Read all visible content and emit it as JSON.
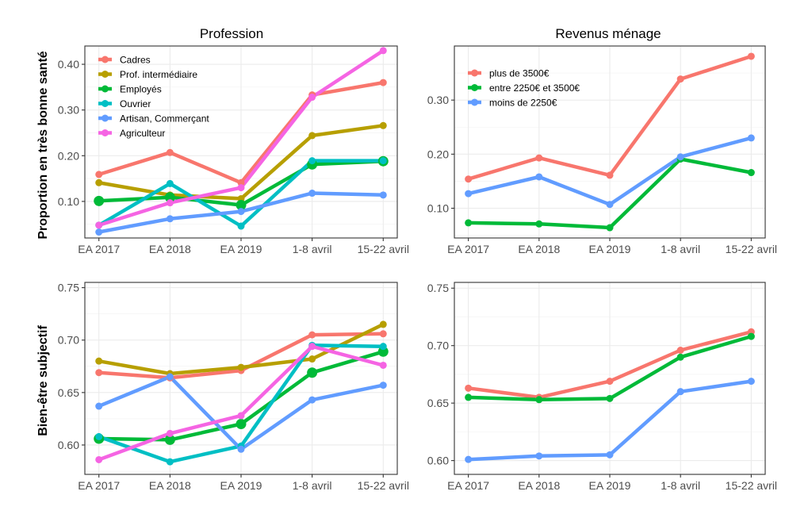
{
  "col_titles": [
    "Profession",
    "Revenus ménage"
  ],
  "row_labels": [
    "Proportion en très bonne santé",
    "Bien-être subjectif"
  ],
  "colors": {
    "Cadres": "#F8766D",
    "Prof. intermédiaire": "#B79F00",
    "Employés": "#00BA38",
    "Ouvrier": "#00BFC4",
    "Artisan, Commerçant": "#619CFF",
    "Agriculteur": "#F564E3",
    "plus de 3500€": "#F8766D",
    "entre 2250€ et 3500€": "#00BA38",
    "moins de 2250€": "#619CFF"
  },
  "chart_data": [
    {
      "type": "line",
      "title": "Profession",
      "ylabel": "Proportion en très bonne santé",
      "categories": [
        "EA 2017",
        "EA 2018",
        "EA 2019",
        "1-8 avril",
        "15-22 avril"
      ],
      "ylim": [
        0.02,
        0.44
      ],
      "yticks": [
        0.1,
        0.2,
        0.3,
        0.4
      ],
      "ytick_labels": [
        "0.10",
        "0.20",
        "0.30",
        "0.40"
      ],
      "grid": true,
      "legend": "top-left",
      "series": [
        {
          "name": "Cadres",
          "values": [
            0.159,
            0.207,
            0.141,
            0.333,
            0.36
          ]
        },
        {
          "name": "Prof. intermédiaire",
          "values": [
            0.141,
            0.114,
            0.106,
            0.244,
            0.266
          ]
        },
        {
          "name": "Employés",
          "values": [
            0.101,
            0.109,
            0.092,
            0.181,
            0.188
          ]
        },
        {
          "name": "Ouvrier",
          "values": [
            0.048,
            0.139,
            0.046,
            0.189,
            0.189
          ]
        },
        {
          "name": "Artisan, Commerçant",
          "values": [
            0.033,
            0.062,
            0.078,
            0.118,
            0.114
          ]
        },
        {
          "name": "Agriculteur",
          "values": [
            0.048,
            0.097,
            0.13,
            0.328,
            0.43
          ]
        }
      ]
    },
    {
      "type": "line",
      "title": "Revenus ménage",
      "ylabel": "",
      "categories": [
        "EA 2017",
        "EA 2018",
        "EA 2019",
        "1-8 avril",
        "15-22 avril"
      ],
      "ylim": [
        0.045,
        0.4
      ],
      "yticks": [
        0.1,
        0.2,
        0.3
      ],
      "ytick_labels": [
        "0.10",
        "0.20",
        "0.30"
      ],
      "grid": true,
      "legend": "top-left",
      "series": [
        {
          "name": "plus de 3500€",
          "values": [
            0.154,
            0.193,
            0.161,
            0.339,
            0.381
          ]
        },
        {
          "name": "entre 2250€ et 3500€",
          "values": [
            0.073,
            0.071,
            0.064,
            0.191,
            0.166
          ]
        },
        {
          "name": "moins de 2250€",
          "values": [
            0.127,
            0.158,
            0.107,
            0.195,
            0.23
          ]
        }
      ]
    },
    {
      "type": "line",
      "title": "",
      "ylabel": "Bien-être subjectif",
      "categories": [
        "EA 2017",
        "EA 2018",
        "EA 2019",
        "1-8 avril",
        "15-22 avril"
      ],
      "ylim": [
        0.572,
        0.755
      ],
      "yticks": [
        0.6,
        0.65,
        0.7,
        0.75
      ],
      "ytick_labels": [
        "0.60",
        "0.65",
        "0.70",
        "0.75"
      ],
      "grid": true,
      "legend": "none",
      "series": [
        {
          "name": "Cadres",
          "values": [
            0.669,
            0.664,
            0.671,
            0.705,
            0.706
          ]
        },
        {
          "name": "Prof. intermédiaire",
          "values": [
            0.68,
            0.668,
            0.674,
            0.682,
            0.715
          ]
        },
        {
          "name": "Employés",
          "values": [
            0.606,
            0.605,
            0.62,
            0.669,
            0.689
          ]
        },
        {
          "name": "Ouvrier",
          "values": [
            0.608,
            0.584,
            0.599,
            0.695,
            0.694
          ]
        },
        {
          "name": "Artisan, Commerçant",
          "values": [
            0.637,
            0.665,
            0.596,
            0.643,
            0.657
          ]
        },
        {
          "name": "Agriculteur",
          "values": [
            0.586,
            0.611,
            0.628,
            0.694,
            0.676
          ]
        }
      ]
    },
    {
      "type": "line",
      "title": "",
      "ylabel": "",
      "categories": [
        "EA 2017",
        "EA 2018",
        "EA 2019",
        "1-8 avril",
        "15-22 avril"
      ],
      "ylim": [
        0.588,
        0.755
      ],
      "yticks": [
        0.6,
        0.65,
        0.7,
        0.75
      ],
      "ytick_labels": [
        "0.60",
        "0.65",
        "0.70",
        "0.75"
      ],
      "grid": true,
      "legend": "none",
      "series": [
        {
          "name": "plus de 3500€",
          "values": [
            0.663,
            0.655,
            0.669,
            0.696,
            0.712
          ]
        },
        {
          "name": "entre 2250€ et 3500€",
          "values": [
            0.655,
            0.653,
            0.654,
            0.69,
            0.708
          ]
        },
        {
          "name": "moins de 2250€",
          "values": [
            0.601,
            0.604,
            0.605,
            0.66,
            0.669
          ]
        }
      ]
    }
  ]
}
